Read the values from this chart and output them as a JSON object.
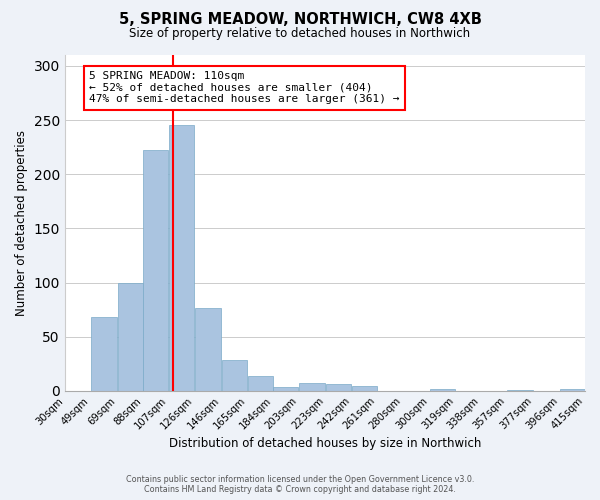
{
  "title": "5, SPRING MEADOW, NORTHWICH, CW8 4XB",
  "subtitle": "Size of property relative to detached houses in Northwich",
  "xlabel": "Distribution of detached houses by size in Northwich",
  "ylabel": "Number of detached properties",
  "footer_line1": "Contains HM Land Registry data © Crown copyright and database right 2024.",
  "footer_line2": "Contains public sector information licensed under the Open Government Licence v3.0.",
  "bin_edges": [
    30,
    49,
    69,
    88,
    107,
    126,
    146,
    165,
    184,
    203,
    223,
    242,
    261,
    280,
    300,
    319,
    338,
    357,
    377,
    396,
    415
  ],
  "bin_labels": [
    "30sqm",
    "49sqm",
    "69sqm",
    "88sqm",
    "107sqm",
    "126sqm",
    "146sqm",
    "165sqm",
    "184sqm",
    "203sqm",
    "223sqm",
    "242sqm",
    "261sqm",
    "280sqm",
    "300sqm",
    "319sqm",
    "338sqm",
    "357sqm",
    "377sqm",
    "396sqm",
    "415sqm"
  ],
  "bar_heights": [
    0,
    68,
    100,
    222,
    245,
    77,
    29,
    14,
    4,
    7,
    6,
    5,
    0,
    0,
    2,
    0,
    0,
    1,
    0,
    2
  ],
  "bar_color": "#aac4e0",
  "bar_edgecolor": "#7aaac8",
  "redline_x": 110,
  "annotation_title": "5 SPRING MEADOW: 110sqm",
  "annotation_line1": "← 52% of detached houses are smaller (404)",
  "annotation_line2": "47% of semi-detached houses are larger (361) →",
  "annotation_box_color": "white",
  "annotation_box_edgecolor": "red",
  "redline_color": "red",
  "ylim": [
    0,
    310
  ],
  "yticks": [
    0,
    50,
    100,
    150,
    200,
    250,
    300
  ],
  "background_color": "#eef2f8",
  "plot_background": "white",
  "grid_color": "#cccccc"
}
